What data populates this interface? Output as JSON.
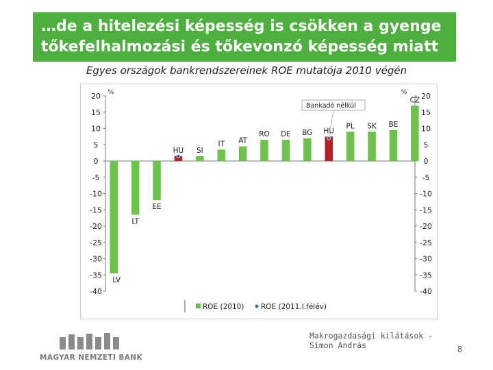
{
  "slide": {
    "title_line1": "…de a hitelezési képesség is csökken a gyenge",
    "title_line2": "tőkefelhalmozási és tőkevonzó képesség miatt",
    "footer_text": "Makrogazdasági kilátások - Simon András",
    "page_number": "8",
    "logo_text": "MAGYAR NEMZETI BANK"
  },
  "colors": {
    "title_bg": "#4caf3e",
    "bar_green": "#6cc24a",
    "bar_red": "#b22222",
    "dot_blue": "#1f77b4"
  },
  "chart_data": {
    "type": "bar",
    "title": "Egyes országok bankrendszereinek ROE mutatója 2010 végén",
    "ylabel_left": "%",
    "ylabel_right": "%",
    "ylim": [
      -40,
      20
    ],
    "yticks": [
      20,
      15,
      10,
      5,
      0,
      -5,
      -10,
      -15,
      -20,
      -25,
      -30,
      -35,
      -40
    ],
    "categories": [
      "LV",
      "LT",
      "EE",
      "HU",
      "SI",
      "IT",
      "AT",
      "RO",
      "DE",
      "BG",
      "HU",
      "PL",
      "SK",
      "BE",
      "CZ"
    ],
    "series": [
      {
        "name": "ROE (2010)",
        "values": [
          -34.5,
          -16.5,
          -12,
          1.5,
          1.5,
          3.5,
          4.5,
          6.5,
          6.5,
          7,
          7.5,
          9,
          9,
          9.5,
          17
        ]
      },
      {
        "name": "ROE (2011.I.félév)",
        "values": [
          null,
          null,
          null,
          1.5,
          null,
          null,
          null,
          null,
          null,
          null,
          7,
          null,
          null,
          null,
          null
        ]
      }
    ],
    "highlight": [
      3,
      10
    ],
    "annotation": "Bankadó nélkül",
    "annotation_target": "HU",
    "legend": [
      "ROE (2010)",
      "ROE (2011.I.félév)"
    ],
    "legend_position": "bottom"
  }
}
